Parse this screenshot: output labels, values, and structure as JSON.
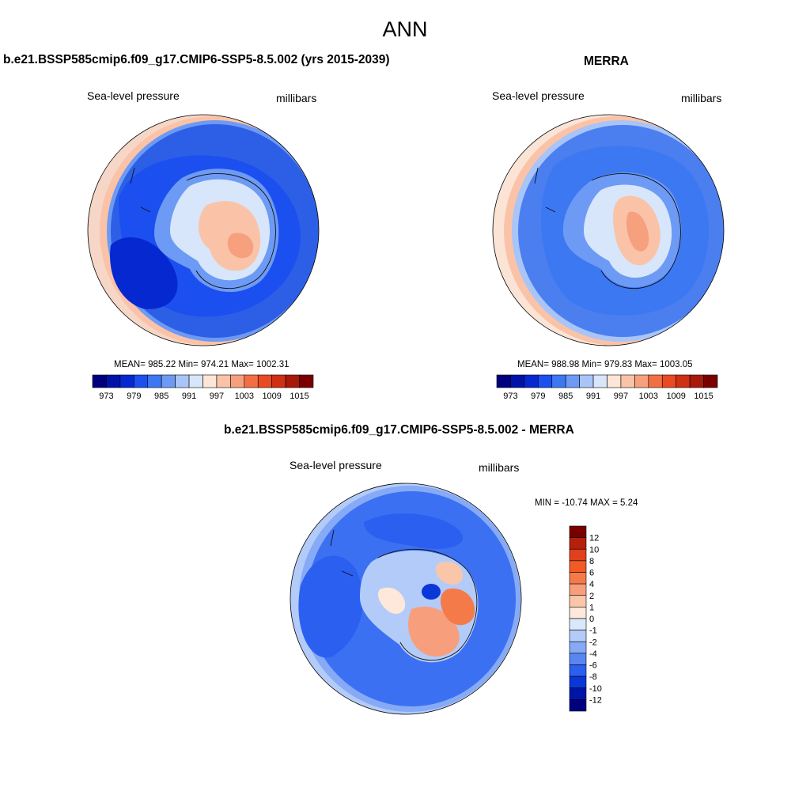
{
  "figure": {
    "title": "ANN"
  },
  "panels": [
    {
      "title": "b.e21.BSSP585cmip6.f09_g17.CMIP6-SSP5-8.5.002 (yrs 2015-2039)",
      "left_label": "Sea-level pressure",
      "right_label": "millibars",
      "stats": {
        "mean": "985.22",
        "min": "974.21",
        "max": "1002.31"
      },
      "stats_text": "MEAN= 985.22  Min= 974.21  Max= 1002.31",
      "colorbar": {
        "colors": [
          "#00007f",
          "#0013a8",
          "#0628d0",
          "#1b4ff0",
          "#3c78f2",
          "#6d9af4",
          "#a9c4f7",
          "#d7e6fb",
          "#fde6d8",
          "#fac3a7",
          "#f6a07d",
          "#f26f44",
          "#ea4a22",
          "#cf2f12",
          "#a9190a",
          "#7a0000"
        ],
        "labels": [
          "973",
          "979",
          "985",
          "991",
          "997",
          "1003",
          "1009",
          "1015"
        ]
      },
      "ocean_color": "#2d5fe6",
      "inner_color": "#3c6ef0",
      "rim_color": "#f6d6c6"
    },
    {
      "title": "MERRA",
      "left_label": "Sea-level pressure",
      "right_label": "millibars",
      "stats": {
        "mean": "988.98",
        "min": "979.83",
        "max": "1003.05"
      },
      "stats_text": "MEAN= 988.98  Min= 979.83  Max= 1003.05",
      "colorbar": {
        "colors": [
          "#00007f",
          "#0013a8",
          "#0628d0",
          "#1b4ff0",
          "#3c78f2",
          "#6d9af4",
          "#a9c4f7",
          "#d7e6fb",
          "#fde6d8",
          "#fac3a7",
          "#f6a07d",
          "#f26f44",
          "#ea4a22",
          "#cf2f12",
          "#a9190a",
          "#7a0000"
        ],
        "labels": [
          "973",
          "979",
          "985",
          "991",
          "997",
          "1003",
          "1009",
          "1015"
        ]
      },
      "ocean_color": "#4b7ff0",
      "inner_color": "#6d9af4",
      "rim_color": "#fbe4d6"
    },
    {
      "title": "b.e21.BSSP585cmip6.f09_g17.CMIP6-SSP5-8.5.002 - MERRA",
      "left_label": "Sea-level pressure",
      "right_label": "millibars",
      "stats_text": "MIN = -10.74 MAX =   5.24",
      "colorbar": {
        "colors": [
          "#7a0000",
          "#b5200d",
          "#e0401c",
          "#f25a26",
          "#f57a4a",
          "#f79f7c",
          "#fac6aa",
          "#fde8da",
          "#dbe8fb",
          "#b3cbf8",
          "#86aaf5",
          "#5a86f2",
          "#2b5ff0",
          "#0a38d8",
          "#0015a8",
          "#00007f"
        ],
        "labels": [
          "12",
          "10",
          "8",
          "6",
          "4",
          "2",
          "1",
          "0",
          "-1",
          "-2",
          "-4",
          "-6",
          "-8",
          "-10",
          "-12"
        ]
      },
      "ocean_color": "#3c70f2",
      "inner_color": "#86aaf5",
      "rim_color": "#b3cbf8"
    }
  ]
}
